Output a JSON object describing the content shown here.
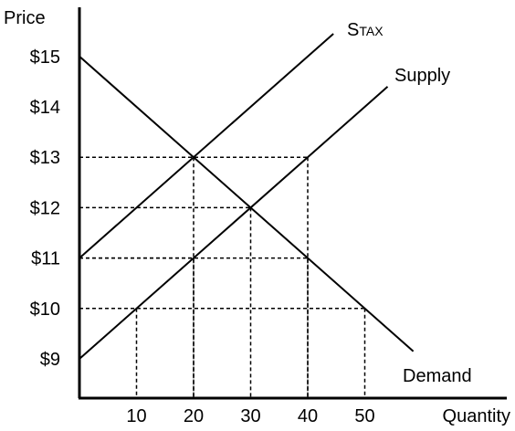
{
  "chart_data": {
    "type": "line",
    "title": "",
    "ylabel": "Price",
    "xlabel": "Quantity",
    "xlim": [
      0,
      60
    ],
    "ylim": [
      8.2,
      15.8
    ],
    "x_ticks": [
      10,
      20,
      30,
      40,
      50
    ],
    "x_tick_labels": [
      "10",
      "20",
      "30",
      "40",
      "50"
    ],
    "y_ticks": [
      9,
      10,
      11,
      12,
      13,
      14,
      15
    ],
    "y_tick_labels": [
      "$9",
      "$10",
      "$11",
      "$12",
      "$13",
      "$14",
      "$15"
    ],
    "grid": false,
    "legend": "none",
    "series": [
      {
        "name": "Demand",
        "x": [
          0,
          58.5
        ],
        "y": [
          15,
          9.15
        ]
      },
      {
        "name": "Supply",
        "x": [
          0,
          54
        ],
        "y": [
          9,
          14.4
        ]
      },
      {
        "name": "STAX",
        "x": [
          0,
          44.5
        ],
        "y": [
          11,
          15.45
        ]
      }
    ],
    "series_label_text": {
      "STAX_main": "S",
      "STAX_sub": "TAX"
    },
    "reference_points": [
      {
        "x": 20,
        "y": 13
      },
      {
        "x": 30,
        "y": 12
      },
      {
        "x": 40,
        "y": 13
      },
      {
        "x": 20,
        "y": 11
      },
      {
        "x": 40,
        "y": 11
      },
      {
        "x": 10,
        "y": 10
      },
      {
        "x": 50,
        "y": 10
      }
    ]
  }
}
